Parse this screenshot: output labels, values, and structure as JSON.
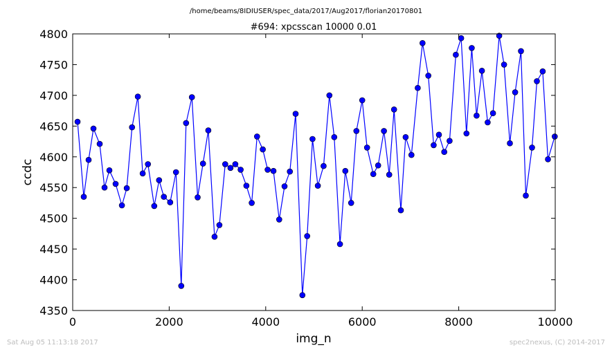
{
  "header": {
    "path": "/home/beams/8IDIUSER/spec_data/2017/Aug2017/florian20170801"
  },
  "footer": {
    "timestamp": "Sat Aug 05 11:13:18 2017",
    "credit": "spec2nexus, (C) 2014-2017"
  },
  "chart_data": {
    "type": "line",
    "title": "#694: xpcsscan 10000 0.01",
    "xlabel": "img_n",
    "ylabel": "ccdc",
    "xlim": [
      0,
      10000
    ],
    "ylim": [
      4350,
      4800
    ],
    "xticks": [
      "0",
      "2000",
      "4000",
      "6000",
      "8000",
      "10000"
    ],
    "yticks": [
      "4350",
      "4400",
      "4450",
      "4500",
      "4550",
      "4600",
      "4650",
      "4700",
      "4750",
      "4800"
    ],
    "grid": false,
    "marker": "circle",
    "line_color": "#0000ff",
    "marker_color": "#0000ff",
    "x": [
      100,
      230,
      330,
      430,
      560,
      660,
      760,
      890,
      1020,
      1120,
      1230,
      1350,
      1450,
      1560,
      1690,
      1790,
      1890,
      2020,
      2140,
      2250,
      2350,
      2470,
      2590,
      2700,
      2810,
      2940,
      3040,
      3160,
      3270,
      3370,
      3480,
      3600,
      3710,
      3820,
      3940,
      4040,
      4160,
      4280,
      4390,
      4500,
      4620,
      4760,
      4860,
      4970,
      5080,
      5200,
      5320,
      5420,
      5540,
      5650,
      5770,
      5880,
      6000,
      6100,
      6230,
      6330,
      6450,
      6560,
      6660,
      6800,
      6900,
      7020,
      7150,
      7250,
      7370,
      7480,
      7590,
      7700,
      7810,
      7940,
      8050,
      8160,
      8270,
      8370,
      8480,
      8600,
      8710,
      8840,
      8940,
      9060,
      9170,
      9290,
      9390,
      9520,
      9620,
      9740,
      9850,
      9990
    ],
    "y": [
      4657,
      4535,
      4595,
      4646,
      4621,
      4550,
      4578,
      4556,
      4521,
      4549,
      4648,
      4698,
      4573,
      4588,
      4520,
      4562,
      4535,
      4526,
      4575,
      4390,
      4655,
      4697,
      4534,
      4589,
      4643,
      4470,
      4489,
      4588,
      4582,
      4588,
      4579,
      4553,
      4525,
      4633,
      4612,
      4579,
      4577,
      4498,
      4552,
      4576,
      4670,
      4375,
      4471,
      4629,
      4553,
      4585,
      4700,
      4632,
      4458,
      4577,
      4525,
      4642,
      4692,
      4615,
      4572,
      4586,
      4642,
      4571,
      4677,
      4513,
      4632,
      4603,
      4712,
      4785,
      4732,
      4619,
      4636,
      4608,
      4626,
      4766,
      4793,
      4638,
      4777,
      4667,
      4740,
      4656,
      4671,
      4797,
      4750,
      4622,
      4705,
      4772,
      4537,
      4615,
      4723,
      4739,
      4596,
      4633
    ]
  }
}
